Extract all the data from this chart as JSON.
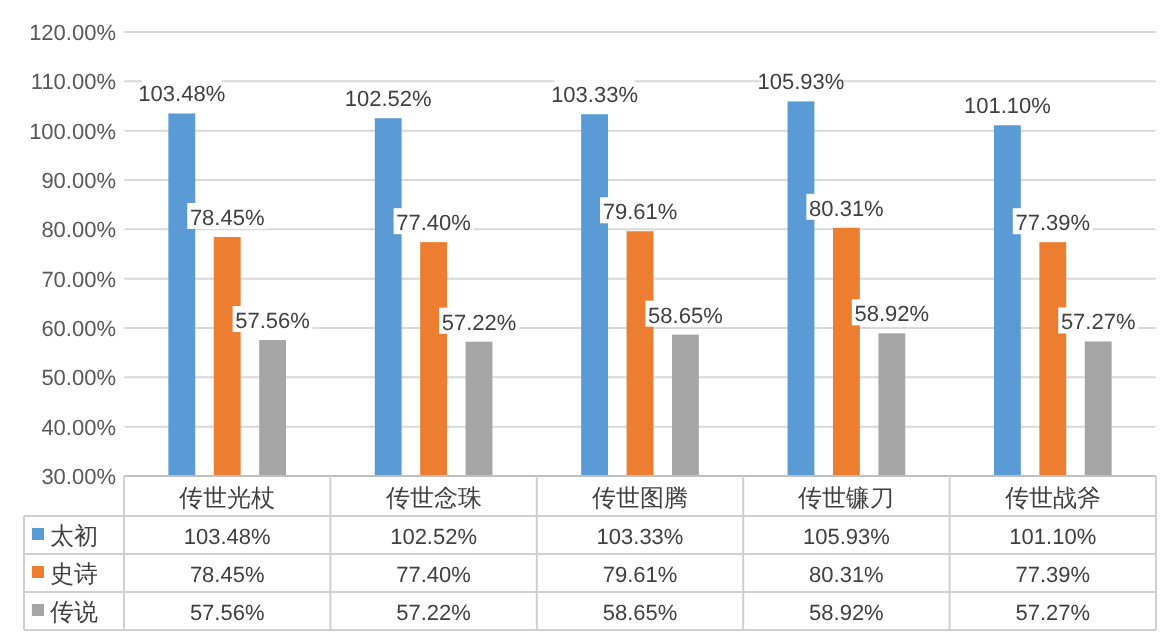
{
  "chart_data": {
    "type": "bar",
    "categories": [
      "传世光杖",
      "传世念珠",
      "传世图腾",
      "传世镰刀",
      "传世战斧"
    ],
    "series": [
      {
        "name": "太初",
        "color": "#5b9bd5",
        "values": [
          103.48,
          102.52,
          103.33,
          105.93,
          101.1
        ],
        "value_labels": [
          "103.48%",
          "102.52%",
          "103.33%",
          "105.93%",
          "101.10%"
        ]
      },
      {
        "name": "史诗",
        "color": "#ed7d31",
        "values": [
          78.45,
          77.4,
          79.61,
          80.31,
          77.39
        ],
        "value_labels": [
          "78.45%",
          "77.40%",
          "79.61%",
          "80.31%",
          "77.39%"
        ]
      },
      {
        "name": "传说",
        "color": "#a5a5a5",
        "values": [
          57.56,
          57.22,
          58.65,
          58.92,
          57.27
        ],
        "value_labels": [
          "57.56%",
          "57.22%",
          "58.65%",
          "58.92%",
          "57.27%"
        ]
      }
    ],
    "ylim": [
      30,
      120
    ],
    "yticks": [
      {
        "value": 30,
        "label": "30.00%"
      },
      {
        "value": 40,
        "label": "40.00%"
      },
      {
        "value": 50,
        "label": "50.00%"
      },
      {
        "value": 60,
        "label": "60.00%"
      },
      {
        "value": 70,
        "label": "70.00%"
      },
      {
        "value": 80,
        "label": "80.00%"
      },
      {
        "value": 90,
        "label": "90.00%"
      },
      {
        "value": 100,
        "label": "100.00%"
      },
      {
        "value": 110,
        "label": "110.00%"
      },
      {
        "value": 120,
        "label": "120.00%"
      }
    ],
    "grid": "y",
    "legend": "bottom left"
  }
}
